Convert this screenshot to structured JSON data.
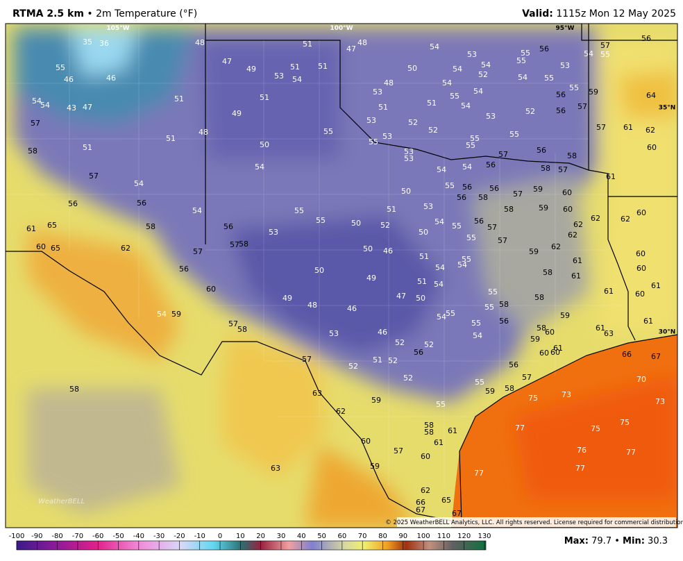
{
  "header": {
    "title": "RTMA 2.5 km",
    "separator": "•",
    "subtitle": "2m Temperature (°F)",
    "valid_label": "Valid",
    "valid_time": "1115z Mon 12 May 2025"
  },
  "axes": {
    "longitudes": [
      "105°W",
      "100°W",
      "95°W"
    ],
    "latitudes": [
      "35°N",
      "30°N"
    ]
  },
  "logo": "WeatherBELL",
  "copyright": "© 2025 WeatherBELL Analytics, LLC. All rights reserved. License required for commercial distribution.",
  "stations": [
    35,
    36,
    48,
    51,
    48,
    47,
    54,
    53,
    55,
    56,
    57,
    54,
    55,
    56,
    55,
    47,
    49,
    51,
    51,
    53,
    54,
    50,
    54,
    54,
    55,
    53,
    52,
    46,
    46,
    48,
    54,
    54,
    55,
    55,
    56,
    59,
    64,
    54,
    54,
    43,
    47,
    51,
    51,
    53,
    55,
    54,
    56,
    57,
    57,
    49,
    51,
    51,
    54,
    52,
    53,
    58,
    51,
    51,
    48,
    50,
    55,
    53,
    52,
    52,
    55,
    53,
    55,
    55,
    55,
    57,
    61,
    62,
    60,
    57,
    56,
    58,
    53,
    53,
    54,
    54,
    56,
    57,
    58,
    61,
    57,
    54,
    54,
    56,
    56,
    54,
    55,
    50,
    55,
    56,
    56,
    57,
    59,
    60,
    58,
    56,
    53,
    51,
    58,
    59,
    60,
    60,
    61,
    65,
    58,
    56,
    55,
    53,
    50,
    52,
    54,
    55,
    56,
    57,
    50,
    55,
    62,
    62,
    62,
    62,
    60,
    65,
    62,
    57,
    57,
    58,
    50,
    46,
    57,
    62,
    59,
    51,
    55,
    54,
    54,
    61,
    60,
    56,
    50,
    49,
    51,
    54,
    58,
    61,
    60,
    60,
    49,
    48,
    46,
    47,
    50,
    55,
    58,
    61,
    60,
    61,
    54,
    59,
    55,
    58,
    55,
    54,
    56,
    55,
    59,
    61,
    57,
    58,
    53,
    46,
    54,
    58,
    60,
    61,
    63,
    59,
    57,
    52,
    52,
    56,
    60,
    60,
    61,
    66,
    67,
    52,
    51,
    52,
    56,
    52,
    57,
    70,
    58,
    55,
    59,
    58,
    75,
    73,
    73,
    63,
    59,
    55,
    62,
    58,
    58,
    61,
    77,
    75,
    75,
    60,
    61,
    57,
    60,
    76,
    77,
    63,
    59,
    77,
    77,
    62,
    67,
    66,
    65,
    67
  ],
  "colorbar": {
    "ticks": [
      -100,
      -90,
      -80,
      -70,
      -60,
      -50,
      -40,
      -30,
      -20,
      -10,
      0,
      10,
      20,
      30,
      40,
      50,
      60,
      70,
      80,
      90,
      100,
      110,
      120,
      130
    ]
  },
  "stats": {
    "max_label": "Max",
    "max": 79.7,
    "separator": "•",
    "min_label": "Min",
    "min": 30.3
  }
}
